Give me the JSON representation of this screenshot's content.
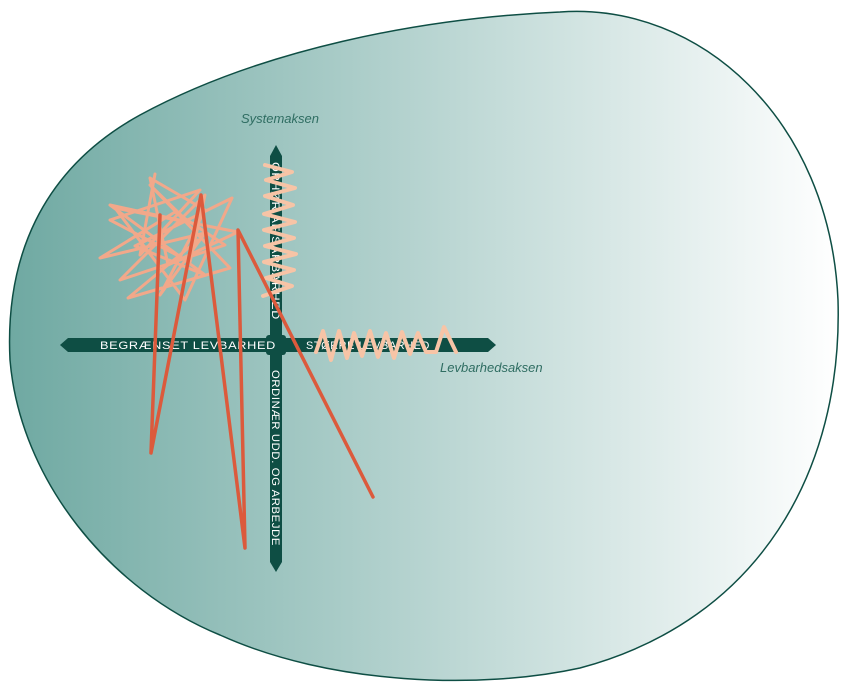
{
  "diagram": {
    "colors": {
      "blob_dark": "#6fa9a2",
      "blob_light": "#ffffff",
      "outline": "#0e4e44",
      "axis": "#0e4e44",
      "axis_text": "#ffffff",
      "title_text": "#2f6d62",
      "scribble": "#f2a88a",
      "zigzag": "#f7c4a6",
      "red_line": "#dc5a3c"
    },
    "vertical_axis": {
      "title": "Systemaksen",
      "top_label": "OPHØR AF SÅRBARHED",
      "bottom_label": "ORDINÆR UDD. OG ARBEJDE"
    },
    "horizontal_axis": {
      "title": "Levbarhedsaksen",
      "left_label": "BEGRÆNSET LEVBARHED",
      "right_label": "STØRRE LEVBARHED"
    }
  }
}
